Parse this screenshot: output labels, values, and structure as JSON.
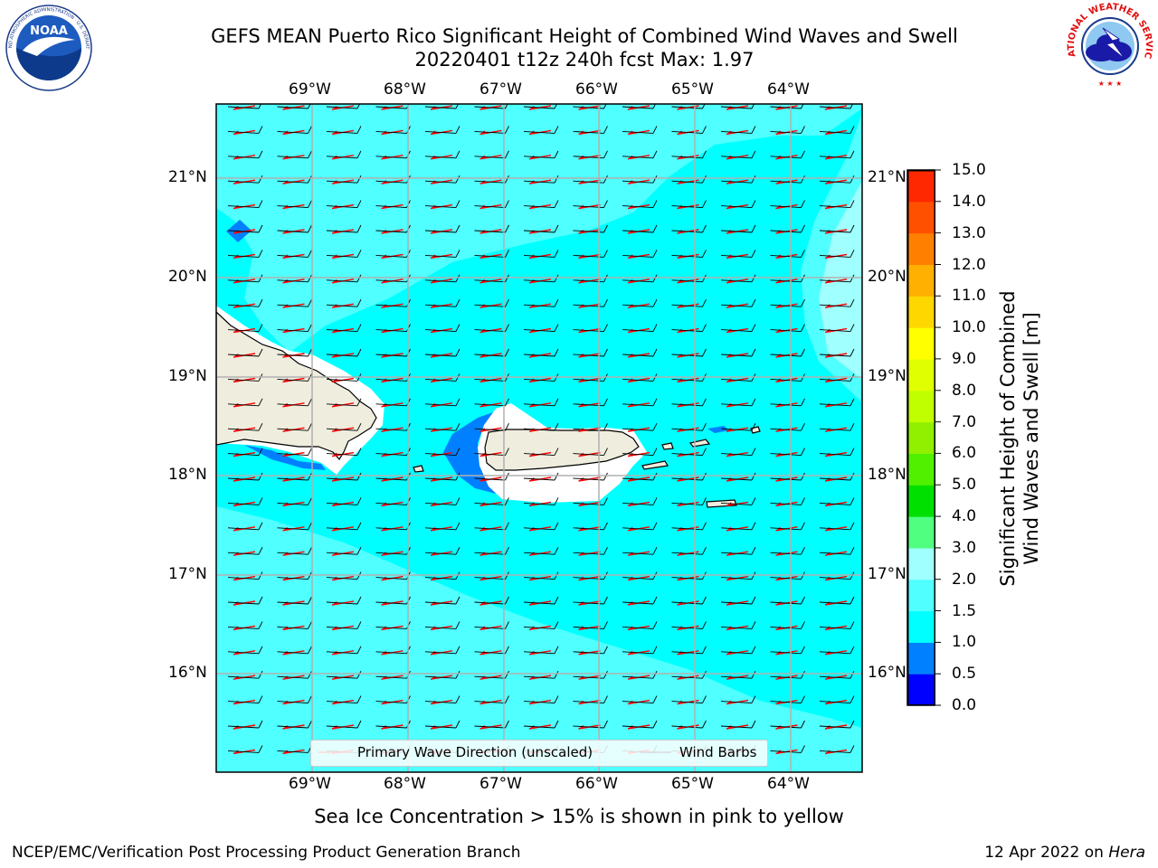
{
  "title": {
    "line1": "GEFS MEAN Puerto Rico Significant Height of Combined Wind Waves and Swell",
    "line2": "20220401 t12z 240h fcst   Max: 1.97"
  },
  "logos": {
    "left": "NOAA",
    "left_ring": "NATIONAL OCEANIC AND ATMOSPHERIC ADMINISTRATION · U.S. DEPARTMENT OF COMMERCE",
    "right_ring": "NATIONAL WEATHER SERVICE"
  },
  "map": {
    "lon_labels": [
      "69°W",
      "68°W",
      "67°W",
      "66°W",
      "65°W",
      "64°W"
    ],
    "lat_labels": [
      "21°N",
      "20°N",
      "19°N",
      "18°N",
      "17°N",
      "16°N"
    ],
    "colors": {
      "ocean_main": "#00ffff",
      "ocean_light": "#50ffff",
      "ocean_lighter": "#a0ffff",
      "low_waves": "#0080ff",
      "land": "#efedde",
      "wave_arrow": "#ff0000",
      "wind_barb": "#000000"
    },
    "legend": {
      "wave_direction": "Primary Wave Direction (unscaled)",
      "wind_barbs": "Wind Barbs"
    }
  },
  "colorbar": {
    "title_line1": "Significant Height of Combined",
    "title_line2": "Wind Waves and Swell [m]",
    "ticks": [
      "15.0",
      "14.0",
      "13.0",
      "12.0",
      "11.0",
      "10.0",
      "9.0",
      "8.0",
      "7.0",
      "6.0",
      "5.0",
      "4.0",
      "3.0",
      "2.0",
      "1.5",
      "1.0",
      "0.5",
      "0.0"
    ],
    "colors": [
      "#0000ff",
      "#0080ff",
      "#00ffff",
      "#50ffff",
      "#a0ffff",
      "#50ff80",
      "#00e000",
      "#50f000",
      "#90f000",
      "#c0ff00",
      "#e0ff00",
      "#ffff00",
      "#ffd700",
      "#ffb000",
      "#ff8000",
      "#ff5000",
      "#ff2800",
      "#ff0000"
    ]
  },
  "note": "Sea Ice Concentration > 15% is shown in pink to yellow",
  "footer": {
    "left": "NCEP/EMC/Verification Post Processing Product Generation Branch",
    "right_prefix": "12 Apr 2022 on ",
    "right_host": "Hera"
  }
}
